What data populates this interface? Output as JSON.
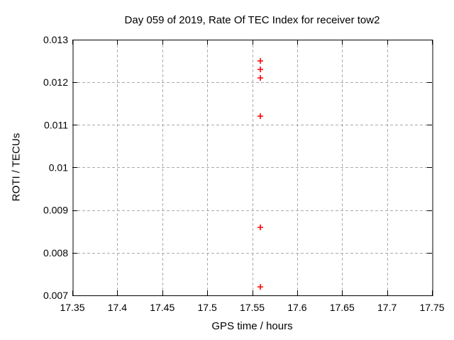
{
  "chart_data": {
    "type": "scatter",
    "title": "Day 059 of 2019, Rate Of TEC Index for receiver tow2",
    "xlabel": "GPS time / hours",
    "ylabel": "ROTI / TECUs",
    "xlim": [
      17.35,
      17.75
    ],
    "ylim": [
      0.007,
      0.013
    ],
    "xticks": {
      "values": [
        17.35,
        17.4,
        17.45,
        17.5,
        17.55,
        17.6,
        17.65,
        17.7,
        17.75
      ],
      "labels": [
        "17.35",
        "17.4",
        "17.45",
        "17.5",
        "17.55",
        "17.6",
        "17.65",
        "17.7",
        "17.75"
      ]
    },
    "yticks": {
      "values": [
        0.007,
        0.008,
        0.009,
        0.01,
        0.011,
        0.012,
        0.013
      ],
      "labels": [
        "0.007",
        "0.008",
        "0.009",
        "0.01",
        "0.011",
        "0.012",
        "0.013"
      ]
    },
    "grid": true,
    "legend": "none",
    "marker": {
      "symbol": "plus",
      "size": 8,
      "color": "#ff0000"
    },
    "series": [
      {
        "name": "ROTI",
        "points": [
          {
            "x": 17.559,
            "y": 0.0125
          },
          {
            "x": 17.559,
            "y": 0.0123
          },
          {
            "x": 17.559,
            "y": 0.0121
          },
          {
            "x": 17.559,
            "y": 0.0112
          },
          {
            "x": 17.559,
            "y": 0.0086
          },
          {
            "x": 17.559,
            "y": 0.0072
          }
        ]
      }
    ],
    "colors": {
      "background": "#ffffff",
      "border": "#000000",
      "grid": "#ababab",
      "text": "#000000"
    }
  }
}
